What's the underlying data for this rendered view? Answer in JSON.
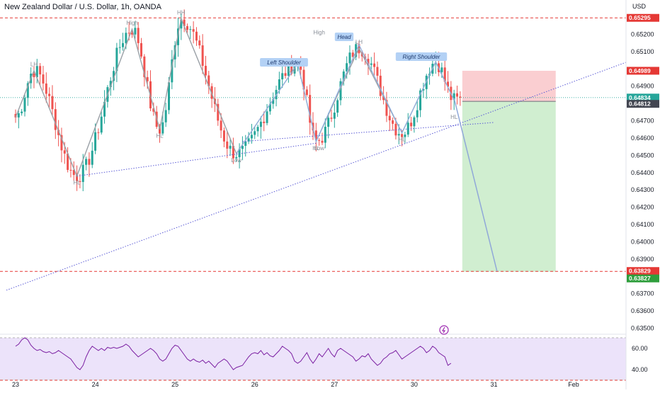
{
  "chart_title": "New Zealand Dollar / U.S. Dollar, 1h, OANDA",
  "currency_label": "USD",
  "colors": {
    "up": "#26a69a",
    "down": "#ef5350",
    "red_line": "#e53935",
    "pattern_line": "#9aa0a6",
    "trend_line": "#5b5bd6",
    "projection_line": "#90a8d8",
    "stop_zone": "#f9c6c9",
    "target_zone": "#c8ebc8",
    "rsi_line": "#7b1fa2",
    "rsi_band": "#ece3fa",
    "badge_bg": "#b3d1f5",
    "current_tag": "#26a69a",
    "dark_tag": "#434651",
    "green_tag": "#2e9e3c"
  },
  "chart_data": {
    "type": "candlestick",
    "symbol": "NZDUSD",
    "timeframe": "1h",
    "ylim": [
      0.6349,
      0.653
    ],
    "y_ticks": [
      "0.65200",
      "0.65100",
      "0.64900",
      "0.64800",
      "0.64700",
      "0.64600",
      "0.64500",
      "0.64400",
      "0.64300",
      "0.64200",
      "0.64100",
      "0.64000",
      "0.63900",
      "0.63800",
      "0.63700",
      "0.63600",
      "0.63500"
    ],
    "y_tick_values": [
      0.652,
      0.651,
      0.649,
      0.648,
      0.647,
      0.646,
      0.645,
      0.644,
      0.643,
      0.642,
      0.641,
      0.64,
      0.639,
      0.638,
      0.637,
      0.636,
      0.635
    ],
    "x_ticks": [
      "23",
      "24",
      "25",
      "26",
      "27",
      "30",
      "31",
      "Feb"
    ],
    "x_tick_index": [
      0,
      26,
      52,
      78,
      104,
      130,
      156,
      182
    ],
    "swing_points": [
      {
        "i": 0,
        "price": 0.6472,
        "label": "",
        "pos": "above"
      },
      {
        "i": 6,
        "price": 0.6499,
        "label": "LH",
        "pos": "above"
      },
      {
        "i": 20,
        "price": 0.6438,
        "label": "HL",
        "pos": "below"
      },
      {
        "i": 38,
        "price": 0.6523,
        "label": "High",
        "pos": "above"
      },
      {
        "i": 47,
        "price": 0.6465,
        "label": "HL",
        "pos": "below"
      },
      {
        "i": 54,
        "price": 0.6529,
        "label": "HH",
        "pos": "above"
      },
      {
        "i": 72,
        "price": 0.6451,
        "label": "Low",
        "pos": "below"
      },
      {
        "i": 92,
        "price": 0.6503,
        "label": "",
        "pos": "above"
      },
      {
        "i": 98,
        "price": 0.6458,
        "label": "HL",
        "pos": "below"
      },
      {
        "i": 112,
        "price": 0.6512,
        "label": "LH",
        "pos": "above"
      },
      {
        "i": 126,
        "price": 0.6463,
        "label": "HL",
        "pos": "below"
      },
      {
        "i": 137,
        "price": 0.6504,
        "label": "",
        "pos": "above"
      },
      {
        "i": 143,
        "price": 0.6482,
        "label": "",
        "pos": "below"
      }
    ],
    "extra_labels": [
      {
        "i": 99,
        "price": 0.652,
        "text": "High"
      },
      {
        "i": 99,
        "price": 0.6453,
        "text": "Low"
      },
      {
        "i": 90,
        "price": 0.6498,
        "text": "LH"
      },
      {
        "i": 143,
        "price": 0.6471,
        "text": "HL"
      }
    ],
    "pattern_labels": {
      "left_shoulder": "Left Shoulder",
      "head": "Head",
      "right_shoulder": "Right Shoulder"
    },
    "trend_lines": [
      {
        "from": {
          "i": 20,
          "price": 0.6438
        },
        "to": {
          "i": 98,
          "price": 0.6457
        },
        "style": "dotted"
      },
      {
        "from": {
          "i": -3,
          "price": 0.6372
        },
        "to": {
          "i": 204,
          "price": 0.6507
        },
        "style": "dotted"
      },
      {
        "from": {
          "i": 74,
          "price": 0.6458
        },
        "to": {
          "i": 156,
          "price": 0.6469
        },
        "style": "dotted"
      }
    ],
    "projection": {
      "from": {
        "i": 143,
        "price": 0.6483
      },
      "to": {
        "i": 157,
        "price": 0.6383
      }
    },
    "position": {
      "entry": 0.64812,
      "stop": 0.64989,
      "target": 0.63827,
      "start_i": 145,
      "end_i": 175
    },
    "horizontal_lines": [
      0.65295,
      0.63829
    ],
    "price_tags": [
      {
        "price": 0.65295,
        "text": "0.65295",
        "style": "red"
      },
      {
        "price": 0.64989,
        "text": "0.64989",
        "style": "red"
      },
      {
        "price": 0.64834,
        "text": "0.64834",
        "style": "current",
        "sub": "59:47"
      },
      {
        "price": 0.64812,
        "text": "0.64812",
        "style": "dark"
      },
      {
        "price": 0.63829,
        "text": "0.63829",
        "style": "red"
      },
      {
        "price": 0.63827,
        "text": "0.63827",
        "style": "green"
      }
    ],
    "current_price": 0.64834,
    "rsi": {
      "ylim": [
        32,
        72
      ],
      "upper": 70,
      "lower": 30,
      "ticks": [
        "60.00",
        "40.00"
      ],
      "tick_values": [
        60,
        40
      ],
      "values": [
        62,
        64,
        68,
        70,
        68,
        63,
        60,
        58,
        59,
        57,
        56,
        57,
        55,
        56,
        58,
        56,
        54,
        52,
        50,
        46,
        42,
        40,
        44,
        52,
        58,
        62,
        60,
        58,
        60,
        58,
        61,
        60,
        61,
        60,
        61,
        62,
        64,
        62,
        58,
        55,
        52,
        54,
        56,
        58,
        60,
        58,
        55,
        50,
        48,
        50,
        55,
        60,
        63,
        62,
        58,
        54,
        50,
        48,
        50,
        48,
        47,
        49,
        46,
        48,
        45,
        42,
        46,
        48,
        50,
        48,
        44,
        40,
        42,
        43,
        44,
        48,
        52,
        55,
        56,
        55,
        58,
        54,
        56,
        53,
        52,
        55,
        58,
        62,
        60,
        58,
        55,
        48,
        46,
        48,
        52,
        56,
        50,
        46,
        50,
        55,
        52,
        56,
        60,
        55,
        52,
        58,
        60,
        58,
        56,
        54,
        52,
        48,
        50,
        53,
        52,
        55,
        50,
        47,
        44,
        46,
        50,
        52,
        55,
        56,
        58,
        54,
        50,
        52,
        54,
        56,
        58,
        60,
        62,
        60,
        56,
        58,
        62,
        60,
        56,
        54,
        52,
        44,
        46
      ],
      "event_icon": "lightning-icon"
    }
  }
}
